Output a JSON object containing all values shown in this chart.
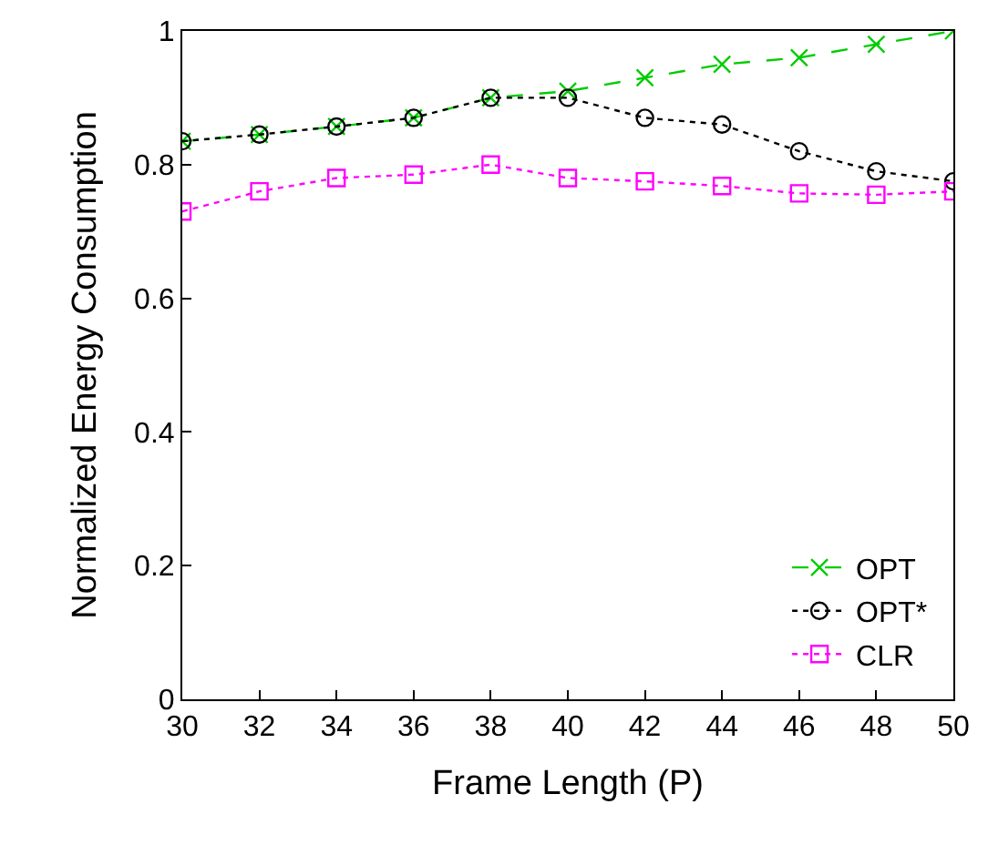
{
  "chart_data": {
    "type": "line",
    "xlabel": "Frame Length (P)",
    "ylabel": "Normalized Energy Consumption",
    "x": [
      30,
      32,
      34,
      36,
      38,
      40,
      42,
      44,
      46,
      48,
      50
    ],
    "series": [
      {
        "name": "OPT",
        "color": "#00cc00",
        "marker": "cross",
        "line_style": "dashed",
        "values": [
          0.835,
          0.845,
          0.857,
          0.87,
          0.9,
          0.91,
          0.93,
          0.95,
          0.96,
          0.98,
          1.0
        ]
      },
      {
        "name": "OPT*",
        "color": "#000000",
        "marker": "circle",
        "line_style": "dotted",
        "values": [
          0.835,
          0.845,
          0.857,
          0.87,
          0.9,
          0.9,
          0.87,
          0.86,
          0.82,
          0.79,
          0.775
        ]
      },
      {
        "name": "CLR",
        "color": "#ff00ff",
        "marker": "square",
        "line_style": "dotted",
        "values": [
          0.73,
          0.76,
          0.78,
          0.785,
          0.8,
          0.78,
          0.775,
          0.768,
          0.757,
          0.755,
          0.76
        ]
      }
    ],
    "xlim": [
      30,
      50
    ],
    "xticks": [
      30,
      32,
      34,
      36,
      38,
      40,
      42,
      44,
      46,
      48,
      50
    ],
    "ylim": [
      0,
      1
    ],
    "yticks": [
      0,
      0.2,
      0.4,
      0.6,
      0.8,
      1
    ],
    "legend": "bottom right"
  }
}
